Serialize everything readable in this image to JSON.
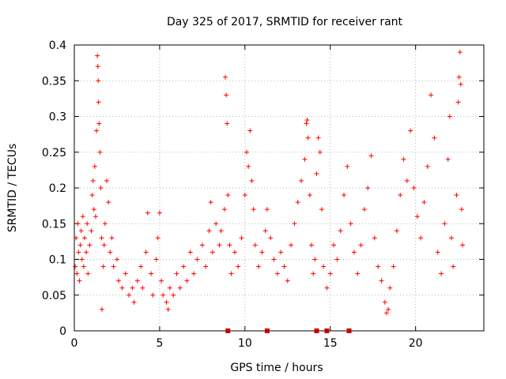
{
  "chart_data": {
    "type": "scatter",
    "title": "Day 325 of 2017, SRMTID for receiver rant",
    "xlabel": "GPS time / hours",
    "ylabel": "SRMTID / TECUs",
    "xlim": [
      0,
      24
    ],
    "ylim": [
      0,
      0.4
    ],
    "x_ticks": [
      0,
      5,
      10,
      15,
      20
    ],
    "x_tick_labels": [
      "0",
      "5",
      "10",
      "15",
      "20"
    ],
    "y_ticks": [
      0,
      0.05,
      0.1,
      0.15,
      0.2,
      0.25,
      0.3,
      0.35,
      0.4
    ],
    "y_tick_labels": [
      "0",
      "0.05",
      "0.1",
      "0.15",
      "0.2",
      "0.25",
      "0.3",
      "0.35",
      "0.4"
    ],
    "grid": true,
    "marker": "+",
    "marker_color": "#ff0000",
    "zero_flags_x": [
      9.0,
      11.3,
      14.2,
      14.8,
      16.1
    ],
    "series": [
      {
        "name": "SRMTID",
        "points": [
          [
            0.05,
            0.09
          ],
          [
            0.1,
            0.13
          ],
          [
            0.15,
            0.08
          ],
          [
            0.2,
            0.15
          ],
          [
            0.25,
            0.11
          ],
          [
            0.3,
            0.07
          ],
          [
            0.35,
            0.12
          ],
          [
            0.4,
            0.14
          ],
          [
            0.45,
            0.1
          ],
          [
            0.5,
            0.16
          ],
          [
            0.55,
            0.09
          ],
          [
            0.6,
            0.13
          ],
          [
            0.7,
            0.11
          ],
          [
            0.75,
            0.15
          ],
          [
            0.8,
            0.08
          ],
          [
            0.9,
            0.12
          ],
          [
            1.0,
            0.14
          ],
          [
            1.05,
            0.19
          ],
          [
            1.1,
            0.21
          ],
          [
            1.15,
            0.17
          ],
          [
            1.2,
            0.23
          ],
          [
            1.25,
            0.16
          ],
          [
            1.3,
            0.28
          ],
          [
            1.35,
            0.385
          ],
          [
            1.38,
            0.37
          ],
          [
            1.4,
            0.35
          ],
          [
            1.42,
            0.32
          ],
          [
            1.45,
            0.29
          ],
          [
            1.5,
            0.25
          ],
          [
            1.55,
            0.2
          ],
          [
            1.6,
            0.13
          ],
          [
            1.62,
            0.03
          ],
          [
            1.7,
            0.09
          ],
          [
            1.75,
            0.12
          ],
          [
            1.8,
            0.15
          ],
          [
            1.9,
            0.21
          ],
          [
            2.0,
            0.18
          ],
          [
            2.1,
            0.11
          ],
          [
            2.2,
            0.13
          ],
          [
            2.3,
            0.09
          ],
          [
            2.5,
            0.1
          ],
          [
            2.6,
            0.07
          ],
          [
            2.8,
            0.06
          ],
          [
            3.0,
            0.08
          ],
          [
            3.2,
            0.05
          ],
          [
            3.4,
            0.06
          ],
          [
            3.5,
            0.04
          ],
          [
            3.7,
            0.07
          ],
          [
            3.9,
            0.09
          ],
          [
            4.0,
            0.06
          ],
          [
            4.2,
            0.11
          ],
          [
            4.3,
            0.165
          ],
          [
            4.5,
            0.08
          ],
          [
            4.6,
            0.05
          ],
          [
            4.8,
            0.1
          ],
          [
            4.9,
            0.13
          ],
          [
            5.0,
            0.165
          ],
          [
            5.1,
            0.07
          ],
          [
            5.2,
            0.05
          ],
          [
            5.4,
            0.04
          ],
          [
            5.5,
            0.03
          ],
          [
            5.6,
            0.06
          ],
          [
            5.8,
            0.05
          ],
          [
            6.0,
            0.08
          ],
          [
            6.2,
            0.06
          ],
          [
            6.4,
            0.09
          ],
          [
            6.6,
            0.07
          ],
          [
            6.8,
            0.11
          ],
          [
            7.0,
            0.08
          ],
          [
            7.2,
            0.1
          ],
          [
            7.5,
            0.12
          ],
          [
            7.7,
            0.09
          ],
          [
            7.9,
            0.14
          ],
          [
            8.0,
            0.18
          ],
          [
            8.1,
            0.11
          ],
          [
            8.3,
            0.15
          ],
          [
            8.5,
            0.12
          ],
          [
            8.6,
            0.14
          ],
          [
            8.8,
            0.17
          ],
          [
            8.85,
            0.355
          ],
          [
            8.9,
            0.33
          ],
          [
            8.95,
            0.29
          ],
          [
            9.0,
            0.19
          ],
          [
            9.1,
            0.12
          ],
          [
            9.2,
            0.08
          ],
          [
            9.4,
            0.11
          ],
          [
            9.6,
            0.09
          ],
          [
            9.8,
            0.13
          ],
          [
            10.0,
            0.19
          ],
          [
            10.1,
            0.25
          ],
          [
            10.2,
            0.23
          ],
          [
            10.3,
            0.28
          ],
          [
            10.4,
            0.21
          ],
          [
            10.5,
            0.17
          ],
          [
            10.6,
            0.12
          ],
          [
            10.8,
            0.09
          ],
          [
            11.0,
            0.11
          ],
          [
            11.2,
            0.14
          ],
          [
            11.3,
            0.17
          ],
          [
            11.5,
            0.13
          ],
          [
            11.7,
            0.1
          ],
          [
            11.9,
            0.08
          ],
          [
            12.1,
            0.11
          ],
          [
            12.3,
            0.09
          ],
          [
            12.5,
            0.07
          ],
          [
            12.7,
            0.12
          ],
          [
            12.9,
            0.15
          ],
          [
            13.1,
            0.18
          ],
          [
            13.3,
            0.21
          ],
          [
            13.5,
            0.24
          ],
          [
            13.6,
            0.29
          ],
          [
            13.65,
            0.295
          ],
          [
            13.7,
            0.27
          ],
          [
            13.8,
            0.19
          ],
          [
            13.9,
            0.12
          ],
          [
            14.0,
            0.08
          ],
          [
            14.1,
            0.1
          ],
          [
            14.2,
            0.22
          ],
          [
            14.3,
            0.27
          ],
          [
            14.4,
            0.25
          ],
          [
            14.5,
            0.17
          ],
          [
            14.6,
            0.09
          ],
          [
            14.8,
            0.06
          ],
          [
            15.0,
            0.08
          ],
          [
            15.2,
            0.12
          ],
          [
            15.4,
            0.1
          ],
          [
            15.6,
            0.14
          ],
          [
            15.8,
            0.19
          ],
          [
            16.0,
            0.23
          ],
          [
            16.2,
            0.15
          ],
          [
            16.4,
            0.11
          ],
          [
            16.6,
            0.08
          ],
          [
            16.8,
            0.12
          ],
          [
            17.0,
            0.17
          ],
          [
            17.2,
            0.2
          ],
          [
            17.4,
            0.245
          ],
          [
            17.6,
            0.13
          ],
          [
            17.8,
            0.09
          ],
          [
            18.0,
            0.07
          ],
          [
            18.2,
            0.04
          ],
          [
            18.3,
            0.025
          ],
          [
            18.4,
            0.03
          ],
          [
            18.5,
            0.06
          ],
          [
            18.7,
            0.09
          ],
          [
            18.9,
            0.14
          ],
          [
            19.1,
            0.19
          ],
          [
            19.3,
            0.24
          ],
          [
            19.5,
            0.21
          ],
          [
            19.7,
            0.28
          ],
          [
            19.9,
            0.2
          ],
          [
            20.1,
            0.16
          ],
          [
            20.3,
            0.13
          ],
          [
            20.5,
            0.18
          ],
          [
            20.7,
            0.23
          ],
          [
            20.9,
            0.33
          ],
          [
            21.1,
            0.27
          ],
          [
            21.3,
            0.11
          ],
          [
            21.5,
            0.08
          ],
          [
            21.7,
            0.15
          ],
          [
            21.9,
            0.24
          ],
          [
            22.0,
            0.3
          ],
          [
            22.1,
            0.13
          ],
          [
            22.2,
            0.09
          ],
          [
            22.4,
            0.19
          ],
          [
            22.5,
            0.32
          ],
          [
            22.55,
            0.355
          ],
          [
            22.6,
            0.39
          ],
          [
            22.65,
            0.345
          ],
          [
            22.7,
            0.17
          ],
          [
            22.75,
            0.12
          ]
        ]
      }
    ]
  }
}
